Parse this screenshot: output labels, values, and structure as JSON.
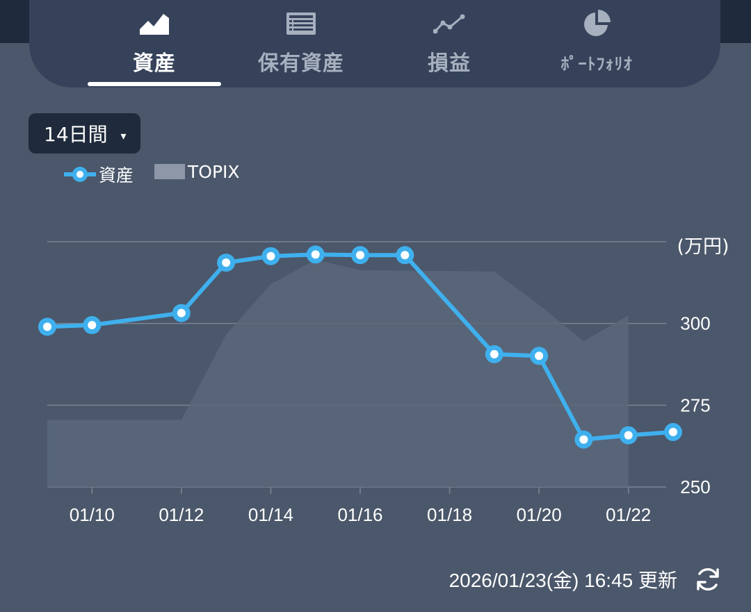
{
  "tabs": [
    {
      "label": "資産",
      "icon": "area-chart-icon",
      "active": true
    },
    {
      "label": "保有資産",
      "icon": "list-icon",
      "active": false
    },
    {
      "label": "損益",
      "icon": "line-chart-icon",
      "active": false
    },
    {
      "label": "ﾎﾟｰﾄﾌｫﾘｵ",
      "icon": "pie-chart-icon",
      "active": false
    }
  ],
  "period": {
    "label": "14日間",
    "caret": "▾"
  },
  "legend": {
    "assets": "資産",
    "benchmark": "TOPIX"
  },
  "colors": {
    "assets_line": "#3fb0ee",
    "benchmark_fill": "#5b677a",
    "grid": "#7b8597",
    "background": "#4b576a",
    "header": "#35425a"
  },
  "footer": {
    "updated": "2026/01/23(金) 16:45 更新"
  },
  "chart_data": {
    "type": "line",
    "y_unit_label": "(万円)",
    "ylim": [
      250,
      325
    ],
    "y_ticks": [
      250,
      275,
      300
    ],
    "x_tick_labels": [
      "01/10",
      "01/12",
      "01/14",
      "01/16",
      "01/18",
      "01/20",
      "01/22"
    ],
    "x_range": [
      "01/09",
      "01/23"
    ],
    "grid": true,
    "legend_position": "top-left",
    "series": [
      {
        "name": "資産",
        "style": "line-with-markers",
        "x": [
          "01/09",
          "01/10",
          "01/12",
          "01/13",
          "01/14",
          "01/15",
          "01/16",
          "01/17",
          "01/19",
          "01/20",
          "01/21",
          "01/22",
          "01/23"
        ],
        "values": [
          299.0,
          299.5,
          303.2,
          318.6,
          320.6,
          321.1,
          320.9,
          320.9,
          290.6,
          290.1,
          264.5,
          265.8,
          266.8
        ]
      },
      {
        "name": "TOPIX",
        "style": "area",
        "x": [
          "01/09",
          "01/12",
          "01/13",
          "01/14",
          "01/15",
          "01/16",
          "01/19",
          "01/20",
          "01/21",
          "01/22"
        ],
        "values": [
          270.5,
          270.5,
          296.6,
          312.0,
          319.5,
          316.3,
          315.9,
          305.7,
          294.6,
          302.5
        ]
      }
    ]
  }
}
